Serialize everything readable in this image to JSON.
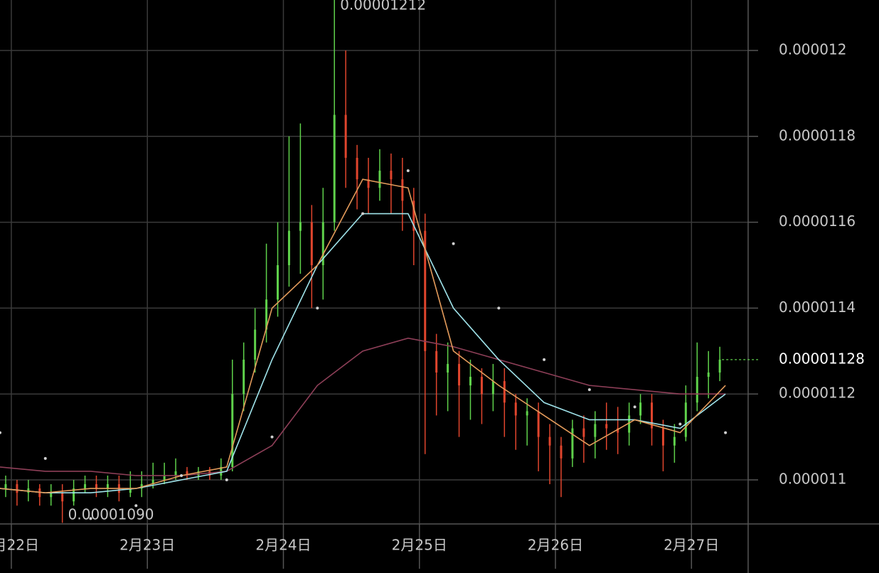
{
  "chart_data": {
    "type": "candlestick",
    "x": [
      -1,
      1,
      3,
      5,
      7,
      9,
      11,
      13,
      15,
      17,
      19,
      21,
      23,
      25,
      27,
      29,
      31,
      33,
      35,
      37,
      39,
      41,
      43,
      45,
      47,
      49,
      51,
      53,
      55,
      57,
      59,
      61,
      63,
      65,
      67,
      69,
      71,
      73,
      75,
      77,
      79,
      81,
      83,
      85,
      87,
      89,
      91,
      93,
      95,
      97,
      99,
      101,
      103,
      105,
      107,
      109,
      111,
      113,
      115,
      117,
      119,
      121,
      123,
      125
    ],
    "open": [
      1.098e-05,
      1.099e-05,
      1.097e-05,
      1.098e-05,
      1.096e-05,
      1.097e-05,
      1.095e-05,
      1.098e-05,
      1.099e-05,
      1.098e-05,
      1.099e-05,
      1.097e-05,
      1.098e-05,
      1.099e-05,
      1.1e-05,
      1.101e-05,
      1.102e-05,
      1.101e-05,
      1.102e-05,
      1.101e-05,
      1.103e-05,
      1.12e-05,
      1.128e-05,
      1.135e-05,
      1.142e-05,
      1.15e-05,
      1.158e-05,
      1.16e-05,
      1.15e-05,
      1.16e-05,
      1.185e-05,
      1.175e-05,
      1.17e-05,
      1.168e-05,
      1.172e-05,
      1.17e-05,
      1.165e-05,
      1.158e-05,
      1.13e-05,
      1.125e-05,
      1.127e-05,
      1.122e-05,
      1.124e-05,
      1.12e-05,
      1.123e-05,
      1.118e-05,
      1.115e-05,
      1.116e-05,
      1.11e-05,
      1.108e-05,
      1.105e-05,
      1.112e-05,
      1.11e-05,
      1.113e-05,
      1.112e-05,
      1.111e-05,
      1.115e-05,
      1.118e-05,
      1.112e-05,
      1.108e-05,
      1.11e-05,
      1.118e-05,
      1.124e-05,
      1.125e-05
    ],
    "high": [
      1.101e-05,
      1.1e-05,
      1.1e-05,
      1.099e-05,
      1.099e-05,
      1.099e-05,
      1.1e-05,
      1.101e-05,
      1.101e-05,
      1.101e-05,
      1.101e-05,
      1.102e-05,
      1.102e-05,
      1.104e-05,
      1.104e-05,
      1.105e-05,
      1.103e-05,
      1.103e-05,
      1.103e-05,
      1.105e-05,
      1.128e-05,
      1.132e-05,
      1.14e-05,
      1.155e-05,
      1.16e-05,
      1.18e-05,
      1.183e-05,
      1.164e-05,
      1.168e-05,
      1.212e-05,
      1.2e-05,
      1.178e-05,
      1.175e-05,
      1.177e-05,
      1.176e-05,
      1.175e-05,
      1.168e-05,
      1.162e-05,
      1.134e-05,
      1.132e-05,
      1.13e-05,
      1.128e-05,
      1.126e-05,
      1.127e-05,
      1.126e-05,
      1.12e-05,
      1.119e-05,
      1.118e-05,
      1.113e-05,
      1.11e-05,
      1.114e-05,
      1.115e-05,
      1.116e-05,
      1.118e-05,
      1.117e-05,
      1.118e-05,
      1.12e-05,
      1.12e-05,
      1.114e-05,
      1.113e-05,
      1.122e-05,
      1.132e-05,
      1.13e-05,
      1.131e-05
    ],
    "low": [
      1.096e-05,
      1.094e-05,
      1.095e-05,
      1.094e-05,
      1.094e-05,
      1.09e-05,
      1.094e-05,
      1.097e-05,
      1.096e-05,
      1.096e-05,
      1.095e-05,
      1.096e-05,
      1.096e-05,
      1.098e-05,
      1.099e-05,
      1.1e-05,
      1.1e-05,
      1.1e-05,
      1.1e-05,
      1.1e-05,
      1.102e-05,
      1.116e-05,
      1.125e-05,
      1.132e-05,
      1.138e-05,
      1.145e-05,
      1.148e-05,
      1.14e-05,
      1.142e-05,
      1.158e-05,
      1.168e-05,
      1.163e-05,
      1.162e-05,
      1.165e-05,
      1.162e-05,
      1.158e-05,
      1.15e-05,
      1.106e-05,
      1.115e-05,
      1.116e-05,
      1.11e-05,
      1.114e-05,
      1.113e-05,
      1.116e-05,
      1.11e-05,
      1.107e-05,
      1.108e-05,
      1.102e-05,
      1.099e-05,
      1.096e-05,
      1.103e-05,
      1.104e-05,
      1.105e-05,
      1.107e-05,
      1.106e-05,
      1.108e-05,
      1.113e-05,
      1.108e-05,
      1.102e-05,
      1.104e-05,
      1.109e-05,
      1.116e-05,
      1.119e-05,
      1.123e-05
    ],
    "close": [
      1.099e-05,
      1.097e-05,
      1.098e-05,
      1.096e-05,
      1.097e-05,
      1.095e-05,
      1.098e-05,
      1.099e-05,
      1.098e-05,
      1.099e-05,
      1.097e-05,
      1.098e-05,
      1.099e-05,
      1.1e-05,
      1.101e-05,
      1.102e-05,
      1.101e-05,
      1.102e-05,
      1.101e-05,
      1.103e-05,
      1.12e-05,
      1.128e-05,
      1.135e-05,
      1.142e-05,
      1.15e-05,
      1.158e-05,
      1.16e-05,
      1.15e-05,
      1.16e-05,
      1.185e-05,
      1.175e-05,
      1.17e-05,
      1.168e-05,
      1.172e-05,
      1.17e-05,
      1.165e-05,
      1.158e-05,
      1.13e-05,
      1.125e-05,
      1.127e-05,
      1.122e-05,
      1.124e-05,
      1.12e-05,
      1.123e-05,
      1.118e-05,
      1.115e-05,
      1.116e-05,
      1.11e-05,
      1.108e-05,
      1.105e-05,
      1.112e-05,
      1.11e-05,
      1.113e-05,
      1.112e-05,
      1.111e-05,
      1.115e-05,
      1.118e-05,
      1.112e-05,
      1.108e-05,
      1.11e-05,
      1.118e-05,
      1.124e-05,
      1.125e-05,
      1.128e-05
    ],
    "up_color": "#5fd14b",
    "down_color": "#e0452d",
    "series": [
      {
        "color": "#8e3f58",
        "style": "solid",
        "x": [
          -2,
          6,
          14,
          22,
          30,
          38,
          46,
          54,
          62,
          70,
          78,
          86,
          94,
          102,
          110,
          118,
          126
        ],
        "values": [
          1.103e-05,
          1.102e-05,
          1.102e-05,
          1.101e-05,
          1.101e-05,
          1.102e-05,
          1.108e-05,
          1.122e-05,
          1.13e-05,
          1.133e-05,
          1.131e-05,
          1.128e-05,
          1.125e-05,
          1.122e-05,
          1.121e-05,
          1.12e-05,
          1.12e-05
        ]
      },
      {
        "color": "#9fe3ea",
        "style": "solid",
        "x": [
          -2,
          6,
          14,
          22,
          30,
          38,
          46,
          54,
          62,
          70,
          78,
          86,
          94,
          102,
          110,
          118,
          126
        ],
        "values": [
          1.098e-05,
          1.097e-05,
          1.097e-05,
          1.098e-05,
          1.1e-05,
          1.102e-05,
          1.128e-05,
          1.15e-05,
          1.162e-05,
          1.162e-05,
          1.14e-05,
          1.128e-05,
          1.118e-05,
          1.114e-05,
          1.114e-05,
          1.112e-05,
          1.12e-05
        ]
      },
      {
        "color": "#e39b5b",
        "style": "solid",
        "x": [
          -2,
          6,
          14,
          22,
          30,
          38,
          46,
          54,
          62,
          70,
          78,
          86,
          94,
          102,
          110,
          118,
          126
        ],
        "values": [
          1.098e-05,
          1.097e-05,
          1.098e-05,
          1.098e-05,
          1.101e-05,
          1.103e-05,
          1.14e-05,
          1.15e-05,
          1.17e-05,
          1.168e-05,
          1.13e-05,
          1.122e-05,
          1.115e-05,
          1.108e-05,
          1.114e-05,
          1.111e-05,
          1.122e-05
        ]
      },
      {
        "color": "#d0d0d0",
        "style": "dotted",
        "x": [
          -2,
          6,
          14,
          22,
          30,
          38,
          46,
          54,
          62,
          70,
          78,
          86,
          94,
          102,
          110,
          118,
          126
        ],
        "values": [
          1.111e-05,
          1.105e-05,
          1.091e-05,
          1.094e-05,
          1.101e-05,
          1.1e-05,
          1.11e-05,
          1.14e-05,
          1.162e-05,
          1.172e-05,
          1.155e-05,
          1.14e-05,
          1.128e-05,
          1.121e-05,
          1.117e-05,
          1.113e-05,
          1.111e-05
        ]
      }
    ],
    "annotations": [
      {
        "value": 1.212e-05,
        "label": "0.00001212"
      },
      {
        "value": 1.09e-05,
        "label": "0.00001090"
      }
    ],
    "xlim": [
      -2,
      130
    ],
    "ylim": [
      1.08974e-05,
      1.21175e-05
    ],
    "xticks": [
      {
        "value": 0,
        "label": "2月22日"
      },
      {
        "value": 24,
        "label": "2月23日"
      },
      {
        "value": 48,
        "label": "2月24日"
      },
      {
        "value": 72,
        "label": "2月25日"
      },
      {
        "value": 96,
        "label": "2月26日"
      },
      {
        "value": 120,
        "label": "2月27日"
      }
    ],
    "yticks": [
      1.1e-05,
      1.12e-05,
      1.14e-05,
      1.16e-05,
      1.18e-05,
      1.2e-05
    ],
    "grid": true
  }
}
